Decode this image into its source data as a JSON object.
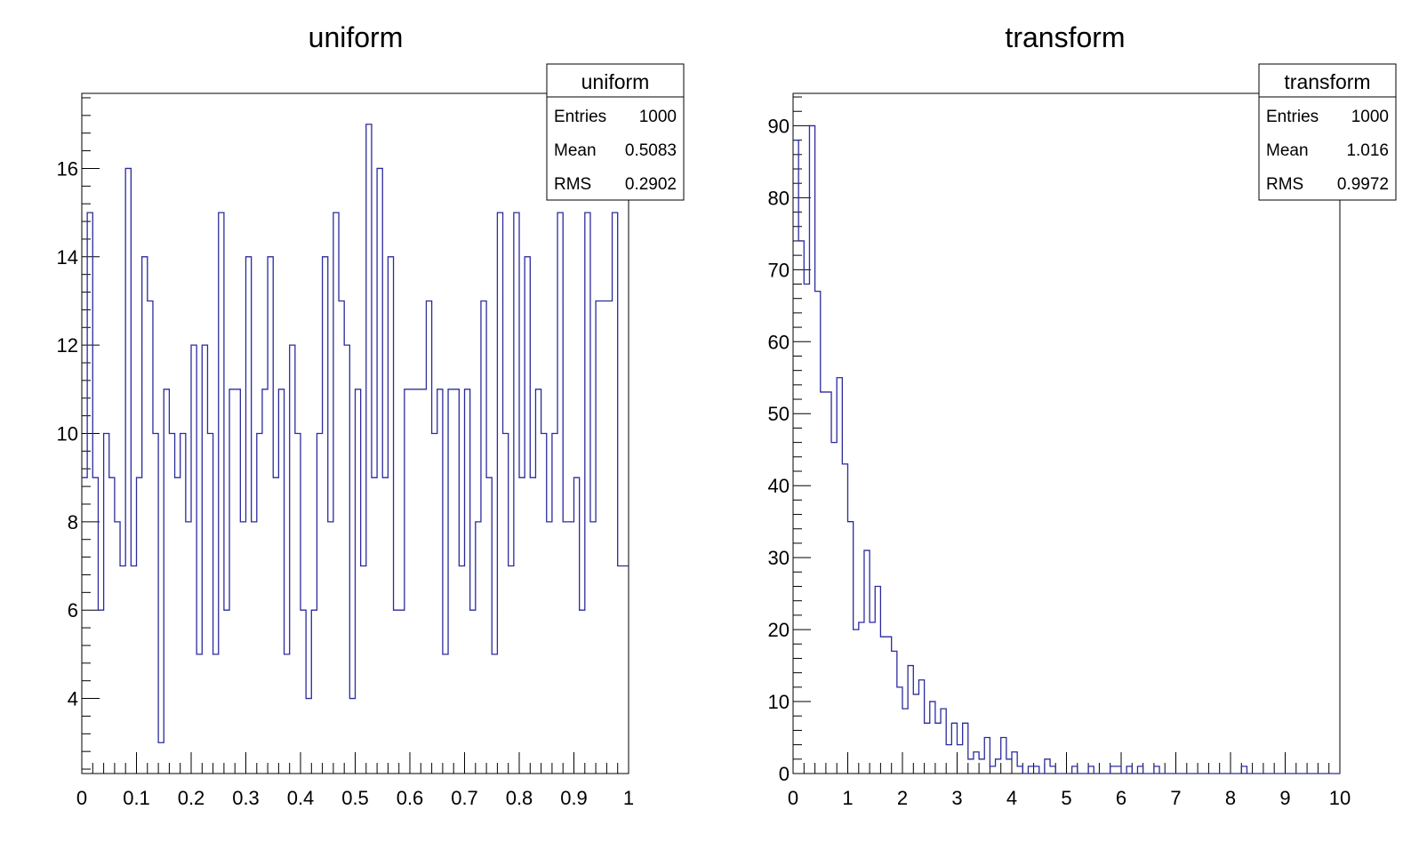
{
  "chart_data": [
    {
      "type": "histogram",
      "title": "uniform",
      "line_color": "#2b2b9e",
      "xlim": [
        0,
        1
      ],
      "ylim": [
        2.3,
        17.7
      ],
      "x_ticks": [
        0,
        0.1,
        0.2,
        0.3,
        0.4,
        0.5,
        0.6,
        0.7,
        0.8,
        0.9,
        1
      ],
      "x_tick_labels": [
        "0",
        "0.1",
        "0.2",
        "0.3",
        "0.4",
        "0.5",
        "0.6",
        "0.7",
        "0.8",
        "0.9",
        "1"
      ],
      "y_ticks": [
        4,
        6,
        8,
        10,
        12,
        14,
        16
      ],
      "y_tick_labels": [
        "4",
        "6",
        "8",
        "10",
        "12",
        "14",
        "16"
      ],
      "bins": [
        0,
        0.01,
        0.02,
        0.03,
        0.04,
        0.05,
        0.06,
        0.07,
        0.08,
        0.09,
        0.1,
        0.11,
        0.12,
        0.13,
        0.14,
        0.15,
        0.16,
        0.17,
        0.18,
        0.19,
        0.2,
        0.21,
        0.22,
        0.23,
        0.24,
        0.25,
        0.26,
        0.27,
        0.28,
        0.29,
        0.3,
        0.31,
        0.32,
        0.33,
        0.34,
        0.35,
        0.36,
        0.37,
        0.38,
        0.39,
        0.4,
        0.41,
        0.42,
        0.43,
        0.44,
        0.45,
        0.46,
        0.47,
        0.48,
        0.49,
        0.5,
        0.51,
        0.52,
        0.53,
        0.54,
        0.55,
        0.56,
        0.57,
        0.58,
        0.59,
        0.6,
        0.61,
        0.62,
        0.63,
        0.64,
        0.65,
        0.66,
        0.67,
        0.68,
        0.69,
        0.7,
        0.71,
        0.72,
        0.73,
        0.74,
        0.75,
        0.76,
        0.77,
        0.78,
        0.79,
        0.8,
        0.81,
        0.82,
        0.83,
        0.84,
        0.85,
        0.86,
        0.87,
        0.88,
        0.89,
        0.9,
        0.91,
        0.92,
        0.93,
        0.94,
        0.95,
        0.96,
        0.97,
        0.98,
        0.99,
        1
      ],
      "values": [
        9,
        15,
        9,
        6,
        10,
        9,
        8,
        7,
        16,
        7,
        9,
        14,
        13,
        10,
        3,
        11,
        10,
        9,
        10,
        8,
        12,
        5,
        12,
        10,
        5,
        15,
        6,
        11,
        11,
        8,
        14,
        8,
        10,
        11,
        14,
        9,
        11,
        5,
        12,
        10,
        6,
        4,
        6,
        10,
        14,
        8,
        15,
        13,
        12,
        4,
        11,
        7,
        17,
        9,
        16,
        9,
        14,
        6,
        6,
        11,
        11,
        11,
        11,
        13,
        10,
        11,
        5,
        11,
        11,
        7,
        11,
        6,
        8,
        13,
        9,
        5,
        15,
        10,
        7,
        15,
        9,
        14,
        9,
        11,
        10,
        8,
        10,
        15,
        8,
        8,
        9,
        6,
        15,
        8,
        13,
        13,
        13,
        15,
        7,
        7
      ],
      "stats": {
        "name": "uniform",
        "rows": [
          {
            "label": "Entries",
            "value": "1000"
          },
          {
            "label": "Mean",
            "value": "0.5083"
          },
          {
            "label": "RMS",
            "value": "0.2902"
          }
        ]
      }
    },
    {
      "type": "histogram",
      "title": "transform",
      "line_color": "#2b2b9e",
      "xlim": [
        0,
        10
      ],
      "ylim": [
        0,
        94.5
      ],
      "x_ticks": [
        0,
        1,
        2,
        3,
        4,
        5,
        6,
        7,
        8,
        9,
        10
      ],
      "x_tick_labels": [
        "0",
        "1",
        "2",
        "3",
        "4",
        "5",
        "6",
        "7",
        "8",
        "9",
        "10"
      ],
      "y_ticks": [
        0,
        10,
        20,
        30,
        40,
        50,
        60,
        70,
        80,
        90
      ],
      "y_tick_labels": [
        "0",
        "10",
        "20",
        "30",
        "40",
        "50",
        "60",
        "70",
        "80",
        "90"
      ],
      "bins": [
        0,
        0.1,
        0.2,
        0.3,
        0.4,
        0.5,
        0.6,
        0.7,
        0.8,
        0.9,
        1,
        1.1,
        1.2,
        1.3,
        1.4,
        1.5,
        1.6,
        1.7,
        1.8,
        1.9,
        2,
        2.1,
        2.2,
        2.3,
        2.4,
        2.5,
        2.6,
        2.7,
        2.8,
        2.9,
        3,
        3.1,
        3.2,
        3.3,
        3.4,
        3.5,
        3.6,
        3.7,
        3.8,
        3.9,
        4,
        4.1,
        4.2,
        4.3,
        4.4,
        4.5,
        4.6,
        4.7,
        4.8,
        4.9,
        5,
        5.1,
        5.2,
        5.3,
        5.4,
        5.5,
        5.6,
        5.7,
        5.8,
        5.9,
        6,
        6.1,
        6.2,
        6.3,
        6.4,
        6.5,
        6.6,
        6.7,
        6.8,
        6.9,
        7,
        7.1,
        7.2,
        7.3,
        7.4,
        7.5,
        7.6,
        7.7,
        7.8,
        7.9,
        8,
        8.1,
        8.2,
        8.3,
        8.4,
        8.5,
        8.6,
        8.7,
        8.8,
        8.9,
        9,
        9.1,
        9.2,
        9.3,
        9.4,
        9.5,
        9.6,
        9.7,
        9.8,
        9.9,
        10
      ],
      "values": [
        88,
        74,
        68,
        90,
        67,
        53,
        53,
        46,
        55,
        43,
        35,
        20,
        21,
        31,
        21,
        26,
        19,
        19,
        17,
        12,
        9,
        15,
        11,
        13,
        7,
        10,
        7,
        9,
        4,
        7,
        4,
        7,
        2,
        3,
        2,
        5,
        1,
        2,
        5,
        2,
        3,
        1,
        0,
        1,
        1,
        0,
        2,
        1,
        0,
        0,
        0,
        1,
        0,
        0,
        1,
        0,
        0,
        0,
        1,
        1,
        0,
        1,
        0,
        1,
        0,
        0,
        1,
        0,
        0,
        0,
        0,
        0,
        0,
        0,
        0,
        0,
        0,
        0,
        0,
        0,
        0,
        0,
        1,
        0,
        0,
        0,
        0,
        0,
        0,
        0,
        0,
        0,
        0,
        0,
        0,
        0,
        0,
        0,
        0,
        0
      ],
      "stats": {
        "name": "transform",
        "rows": [
          {
            "label": "Entries",
            "value": "1000"
          },
          {
            "label": "Mean",
            "value": "1.016"
          },
          {
            "label": "RMS",
            "value": "0.9972"
          }
        ]
      }
    }
  ]
}
